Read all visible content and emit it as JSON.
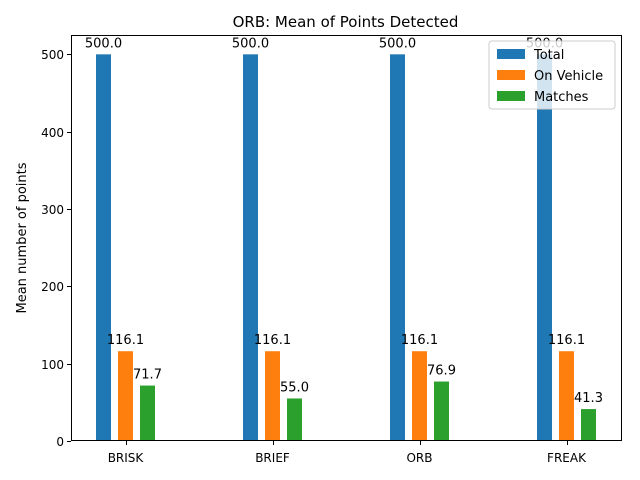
{
  "chart_data": {
    "type": "bar",
    "title": "ORB: Mean of Points Detected",
    "xlabel": "",
    "ylabel": "Mean number of points",
    "categories": [
      "BRISK",
      "BRIEF",
      "ORB",
      "FREAK"
    ],
    "series": [
      {
        "name": "Total",
        "color": "#1f77b4",
        "values": [
          500.0,
          500.0,
          500.0,
          500.0
        ],
        "labels": [
          "500.0",
          "500.0",
          "500.0",
          "500.0"
        ]
      },
      {
        "name": "On Vehicle",
        "color": "#ff7f0e",
        "values": [
          116.1,
          116.1,
          116.1,
          116.1
        ],
        "labels": [
          "116.1",
          "116.1",
          "116.1",
          "116.1"
        ]
      },
      {
        "name": "Matches",
        "color": "#2ca02c",
        "values": [
          71.7,
          55.0,
          76.9,
          41.3
        ],
        "labels": [
          "71.7",
          "55.0",
          "76.9",
          "41.3"
        ]
      }
    ],
    "ylim": [
      0,
      525
    ],
    "yticks": [
      0,
      100,
      200,
      300,
      400,
      500
    ],
    "ytick_labels": [
      "0",
      "100",
      "200",
      "300",
      "400",
      "500"
    ],
    "grid": false,
    "legend_position": "top-right"
  }
}
